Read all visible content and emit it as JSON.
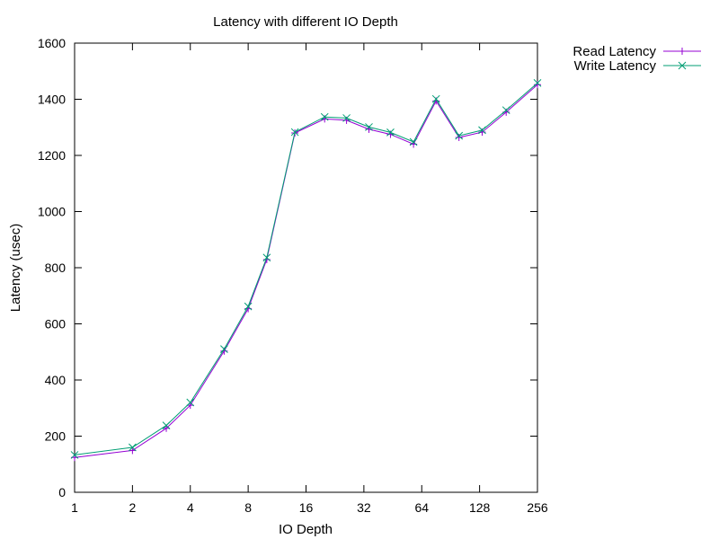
{
  "chart_data": {
    "type": "line",
    "title": "Latency with different IO Depth",
    "xlabel": "IO Depth",
    "ylabel": "Latency (usec)",
    "x_scale": "log2",
    "xlim": [
      1,
      256
    ],
    "ylim": [
      0,
      1600
    ],
    "grid": false,
    "legend_position": "outside-top-right",
    "x_ticks": [
      "1",
      "2",
      "4",
      "8",
      "16",
      "32",
      "64",
      "128",
      "256"
    ],
    "y_ticks": [
      "0",
      "200",
      "400",
      "600",
      "800",
      "1000",
      "1200",
      "1400",
      "1600"
    ],
    "x": [
      1,
      2,
      3,
      4,
      6,
      8,
      10,
      14,
      20,
      26,
      34,
      44,
      58,
      76,
      100,
      132,
      176,
      256
    ],
    "series": [
      {
        "name": "Read Latency",
        "color": "#9400d3",
        "marker": "plus",
        "values": [
          124,
          149,
          228,
          310,
          503,
          654,
          829,
          1280,
          1330,
          1325,
          1293,
          1275,
          1240,
          1394,
          1264,
          1283,
          1354,
          1452
        ]
      },
      {
        "name": "Write Latency",
        "color": "#009e73",
        "marker": "cross",
        "values": [
          133,
          160,
          238,
          320,
          510,
          662,
          836,
          1283,
          1337,
          1333,
          1301,
          1282,
          1248,
          1401,
          1270,
          1290,
          1361,
          1458
        ]
      }
    ]
  }
}
